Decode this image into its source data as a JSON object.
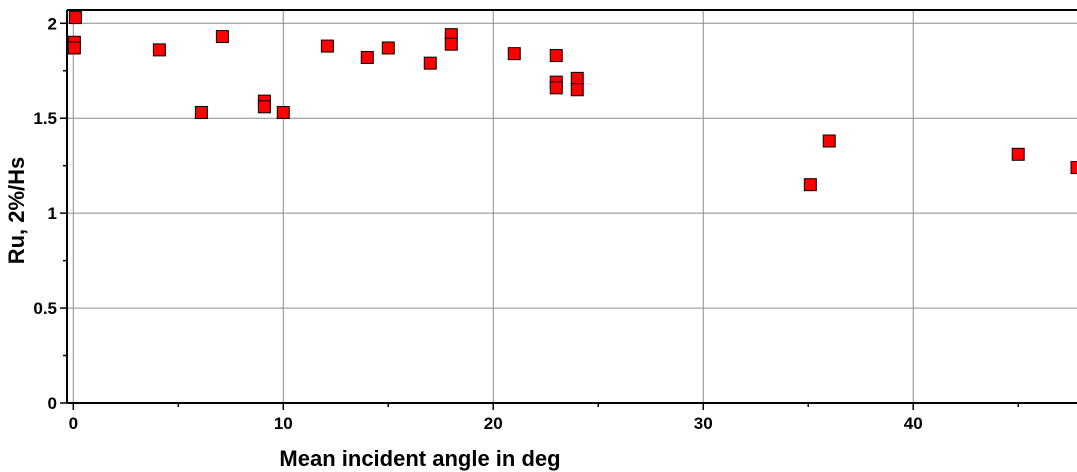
{
  "chart_data": {
    "type": "scatter",
    "title": "",
    "xlabel": "Mean incident angle in deg",
    "ylabel": "Ru, 2%/Hs",
    "xlim": [
      -0.3,
      47.8
    ],
    "ylim": [
      0,
      2.07
    ],
    "xticks": [
      0,
      10,
      20,
      30,
      40
    ],
    "xtick_labels": [
      "0",
      "10",
      "20",
      "30",
      "40"
    ],
    "yticks": [
      0,
      0.5,
      1,
      1.5,
      2
    ],
    "ytick_labels": [
      "0",
      "0.5",
      "1",
      "1.5",
      "2"
    ],
    "grid": true,
    "legend": "none",
    "marker": "square",
    "marker_color": "#ff0000",
    "points": [
      {
        "x": 0.1,
        "y": 2.03
      },
      {
        "x": 0.05,
        "y": 1.9
      },
      {
        "x": 0.05,
        "y": 1.87
      },
      {
        "x": 4.1,
        "y": 1.86
      },
      {
        "x": 6.1,
        "y": 1.53
      },
      {
        "x": 7.1,
        "y": 1.93
      },
      {
        "x": 9.1,
        "y": 1.59
      },
      {
        "x": 9.1,
        "y": 1.56
      },
      {
        "x": 10.0,
        "y": 1.53
      },
      {
        "x": 12.1,
        "y": 1.88
      },
      {
        "x": 14.0,
        "y": 1.82
      },
      {
        "x": 15.0,
        "y": 1.87
      },
      {
        "x": 17.0,
        "y": 1.79
      },
      {
        "x": 18.0,
        "y": 1.94
      },
      {
        "x": 18.0,
        "y": 1.89
      },
      {
        "x": 21.0,
        "y": 1.84
      },
      {
        "x": 23.0,
        "y": 1.83
      },
      {
        "x": 23.0,
        "y": 1.69
      },
      {
        "x": 23.0,
        "y": 1.66
      },
      {
        "x": 24.0,
        "y": 1.71
      },
      {
        "x": 24.0,
        "y": 1.65
      },
      {
        "x": 35.1,
        "y": 1.15
      },
      {
        "x": 36.0,
        "y": 1.38
      },
      {
        "x": 45.0,
        "y": 1.31
      },
      {
        "x": 47.8,
        "y": 1.24
      }
    ]
  }
}
